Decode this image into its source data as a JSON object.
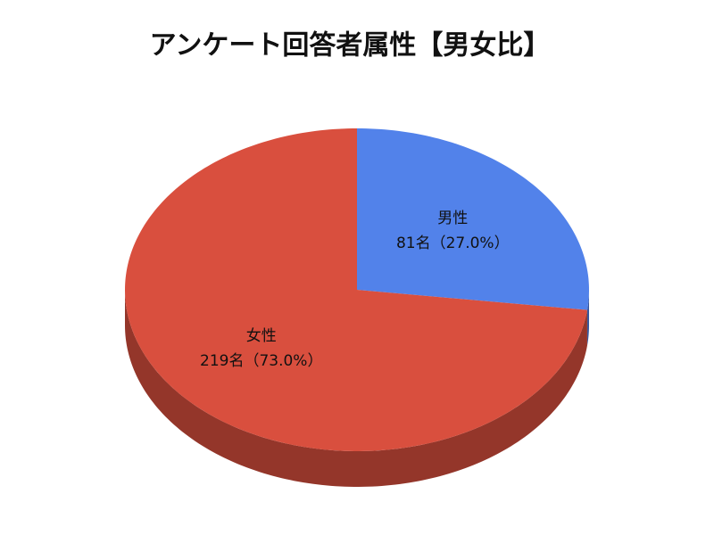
{
  "chart_data": {
    "type": "pie3d",
    "title": "アンケート回答者属性【男女比】",
    "categories": [
      "男性",
      "女性"
    ],
    "values": [
      81,
      219
    ],
    "value_labels": [
      "81名（27.0%）",
      "219名（73.0%）"
    ],
    "colors": [
      "#5282ea",
      "#d94f3e"
    ]
  }
}
